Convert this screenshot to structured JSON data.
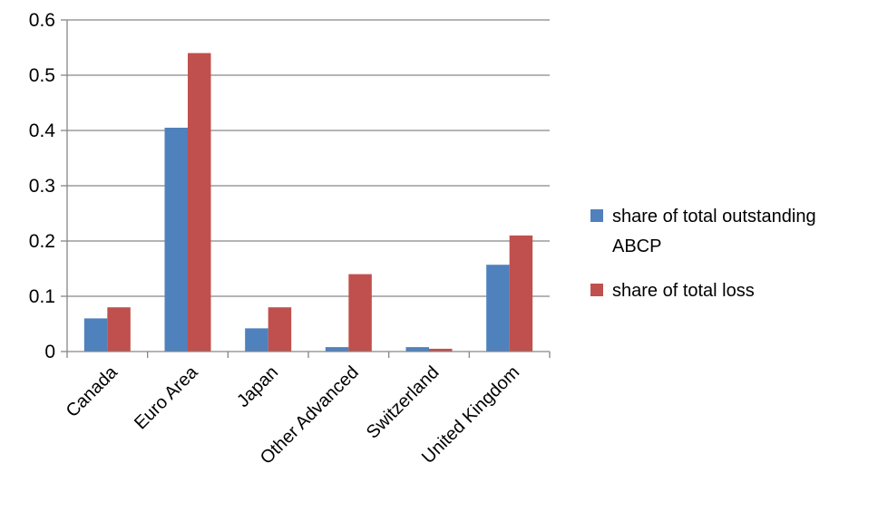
{
  "chart_data": {
    "type": "bar",
    "categories": [
      "Canada",
      "Euro Area",
      "Japan",
      "Other Advanced",
      "Switzerland",
      "United Kingdom"
    ],
    "series": [
      {
        "name": "share of total outstanding ABCP",
        "values": [
          0.06,
          0.405,
          0.042,
          0.008,
          0.008,
          0.157
        ],
        "color": "#4F81BD"
      },
      {
        "name": "share of total loss",
        "values": [
          0.08,
          0.54,
          0.08,
          0.14,
          0.005,
          0.21
        ],
        "color": "#C0504D"
      }
    ],
    "y_ticks": [
      "0",
      "0.1",
      "0.2",
      "0.3",
      "0.4",
      "0.5",
      "0.6"
    ],
    "ylim": [
      0,
      0.6
    ],
    "grid": true,
    "legend_position": "right",
    "legend_lines": [
      [
        "share of total outstanding",
        "ABCP"
      ],
      [
        "share of total loss"
      ]
    ]
  }
}
